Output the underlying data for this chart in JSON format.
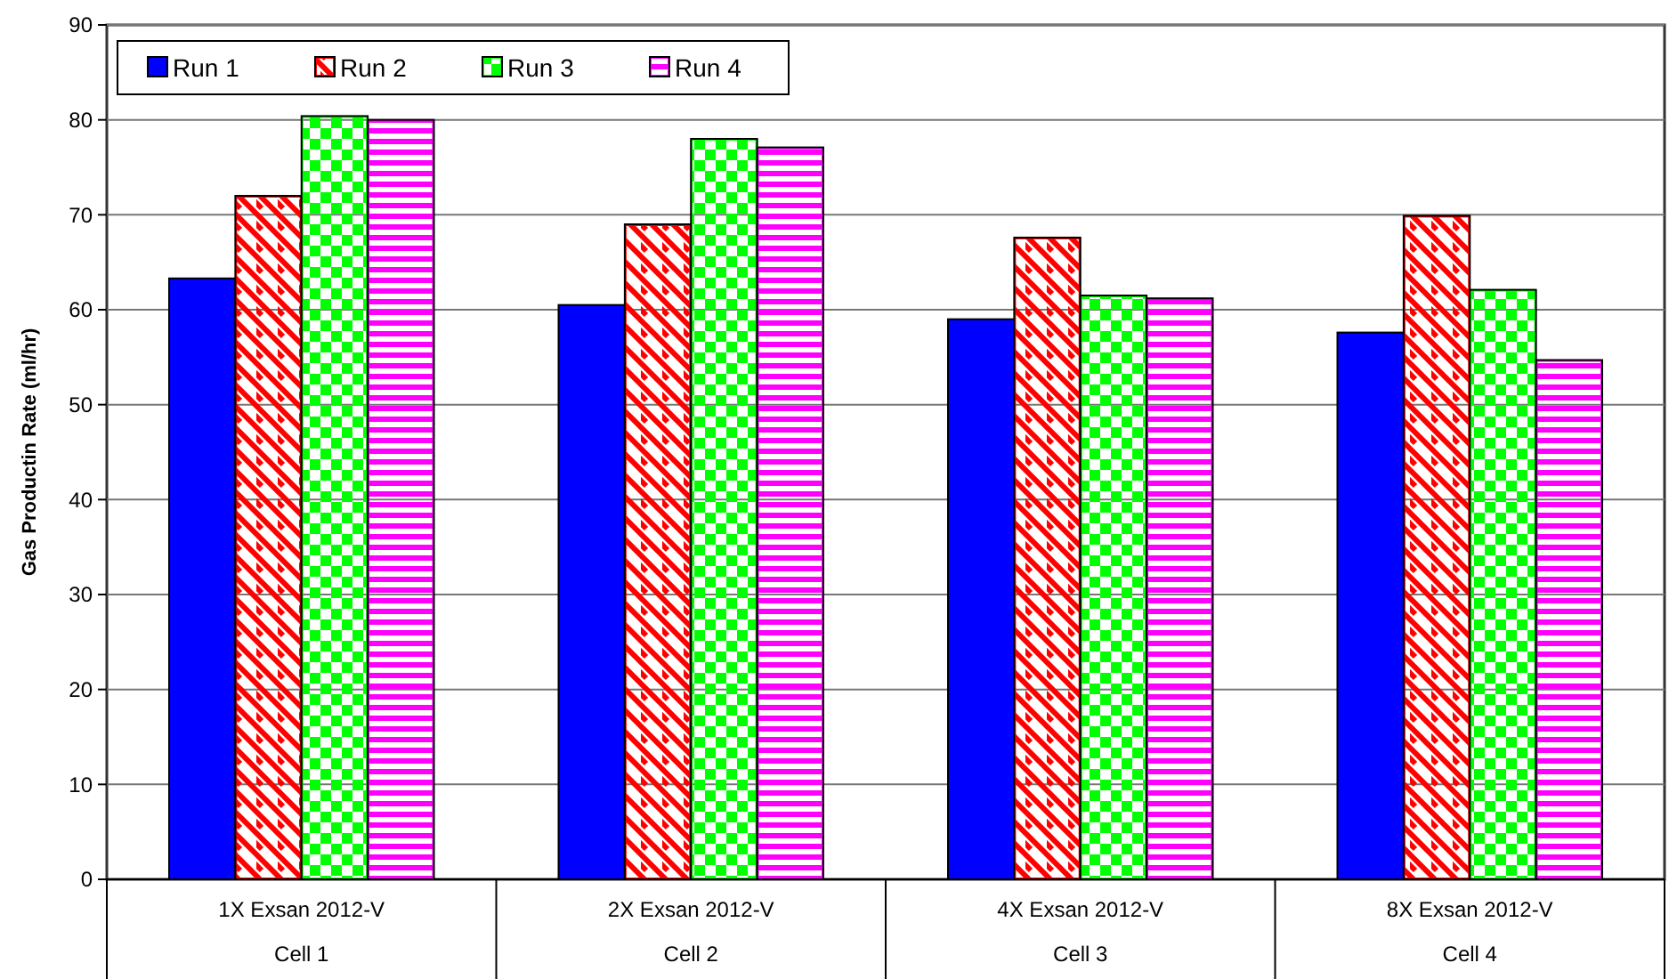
{
  "chart_data": {
    "type": "bar",
    "ylabel": "Gas Productin Rate (ml/hr)",
    "categories": [
      "1X Exsan 2012-V\nCell 1",
      "2X Exsan 2012-V\nCell 2",
      "4X Exsan 2012-V\nCell 3",
      "8X Exsan 2012-V\nCell 4"
    ],
    "series": [
      {
        "name": "Run 1",
        "color": "#0000ff",
        "values": [
          63.3,
          60.5,
          59,
          57.6
        ]
      },
      {
        "name": "Run 2",
        "color": "#ff0000",
        "values": [
          72,
          69,
          67.6,
          69.9
        ]
      },
      {
        "name": "Run 3",
        "color": "#00ff00",
        "values": [
          80.4,
          78,
          61.5,
          62.1
        ]
      },
      {
        "name": "Run 4",
        "color": "#ff00ff",
        "values": [
          80,
          77.1,
          61.2,
          54.7
        ]
      }
    ],
    "ylim": [
      0,
      90
    ],
    "yticks": [
      0,
      10,
      20,
      30,
      40,
      50,
      60,
      70,
      80,
      90
    ],
    "grid": "y",
    "legend": "top left"
  }
}
